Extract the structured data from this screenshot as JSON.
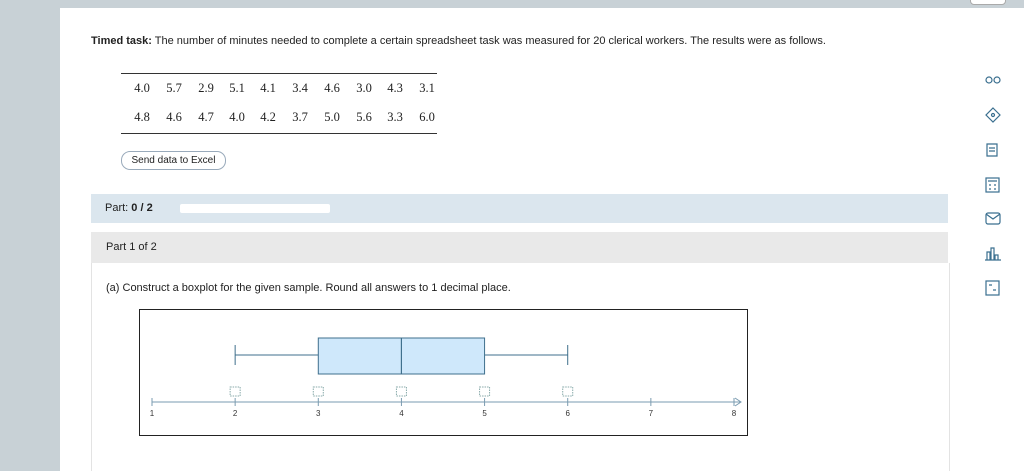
{
  "header": {
    "label": "Timed task:",
    "text": "The number of minutes needed to complete a certain spreadsheet task was measured for 20 clerical workers. The results were as follows."
  },
  "table": {
    "rows": [
      [
        "4.0",
        "5.7",
        "2.9",
        "5.1",
        "4.1",
        "3.4",
        "4.6",
        "3.0",
        "4.3",
        "3.1"
      ],
      [
        "4.8",
        "4.6",
        "4.7",
        "4.0",
        "4.2",
        "3.7",
        "5.0",
        "5.6",
        "3.3",
        "6.0"
      ]
    ]
  },
  "button": "Send data to Excel",
  "progress": {
    "label": "Part:",
    "value": "0 / 2"
  },
  "part": "Part 1 of 2",
  "question": "(a) Construct a boxplot for the given sample. Round all answers to 1 decimal place.",
  "boxplot": {
    "xlim": [
      1,
      8
    ],
    "xticks": [
      1,
      2,
      3,
      4,
      5,
      6,
      7,
      8
    ],
    "min": 2,
    "q1": 3,
    "median": 4,
    "q3": 5,
    "max": 6
  }
}
